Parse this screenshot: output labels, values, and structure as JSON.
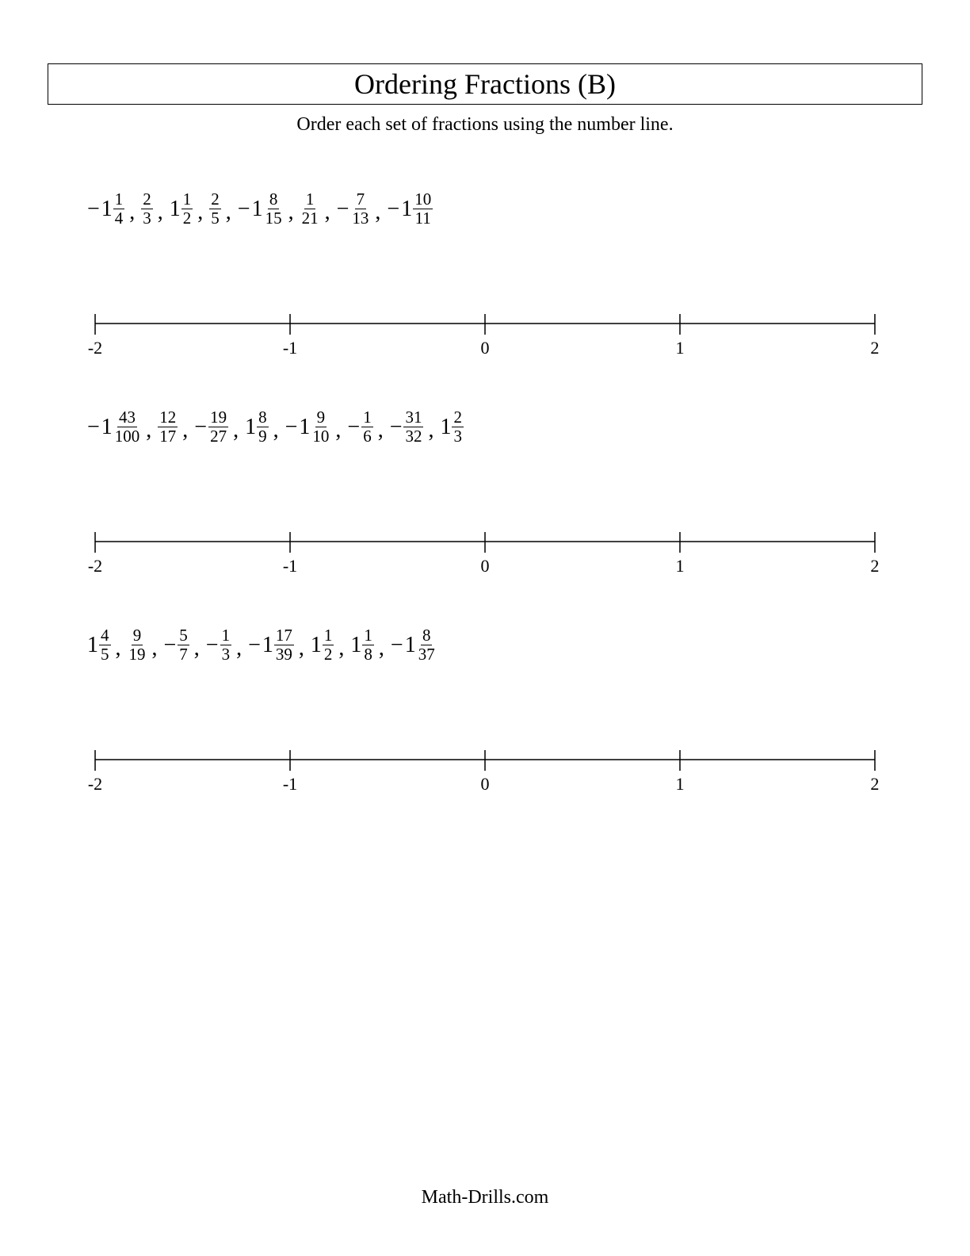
{
  "title": "Ordering Fractions (B)",
  "instructions": "Order each set of fractions using the number line.",
  "footer": "Math-Drills.com",
  "numberline": {
    "min": -2,
    "max": 2,
    "ticks": [
      -2,
      -1,
      0,
      1,
      2
    ],
    "line_color": "#000000",
    "tick_height": 14,
    "label_fontsize": 22
  },
  "problems": [
    {
      "terms": [
        {
          "sign": "−",
          "whole": "1",
          "num": "1",
          "den": "4"
        },
        {
          "sign": "",
          "whole": "",
          "num": "2",
          "den": "3"
        },
        {
          "sign": "",
          "whole": "1",
          "num": "1",
          "den": "2"
        },
        {
          "sign": "",
          "whole": "",
          "num": "2",
          "den": "5"
        },
        {
          "sign": "−",
          "whole": "1",
          "num": "8",
          "den": "15"
        },
        {
          "sign": "",
          "whole": "",
          "num": "1",
          "den": "21"
        },
        {
          "sign": "−",
          "whole": "",
          "num": "7",
          "den": "13"
        },
        {
          "sign": "−",
          "whole": "1",
          "num": "10",
          "den": "11"
        }
      ]
    },
    {
      "terms": [
        {
          "sign": "−",
          "whole": "1",
          "num": "43",
          "den": "100"
        },
        {
          "sign": "",
          "whole": "",
          "num": "12",
          "den": "17"
        },
        {
          "sign": "−",
          "whole": "",
          "num": "19",
          "den": "27"
        },
        {
          "sign": "",
          "whole": "1",
          "num": "8",
          "den": "9"
        },
        {
          "sign": "−",
          "whole": "1",
          "num": "9",
          "den": "10"
        },
        {
          "sign": "−",
          "whole": "",
          "num": "1",
          "den": "6"
        },
        {
          "sign": "−",
          "whole": "",
          "num": "31",
          "den": "32"
        },
        {
          "sign": "",
          "whole": "1",
          "num": "2",
          "den": "3"
        }
      ]
    },
    {
      "terms": [
        {
          "sign": "",
          "whole": "1",
          "num": "4",
          "den": "5"
        },
        {
          "sign": "",
          "whole": "",
          "num": "9",
          "den": "19"
        },
        {
          "sign": "−",
          "whole": "",
          "num": "5",
          "den": "7"
        },
        {
          "sign": "−",
          "whole": "",
          "num": "1",
          "den": "3"
        },
        {
          "sign": "−",
          "whole": "1",
          "num": "17",
          "den": "39"
        },
        {
          "sign": "",
          "whole": "1",
          "num": "1",
          "den": "2"
        },
        {
          "sign": "",
          "whole": "1",
          "num": "1",
          "den": "8"
        },
        {
          "sign": "−",
          "whole": "1",
          "num": "8",
          "den": "37"
        }
      ]
    }
  ]
}
